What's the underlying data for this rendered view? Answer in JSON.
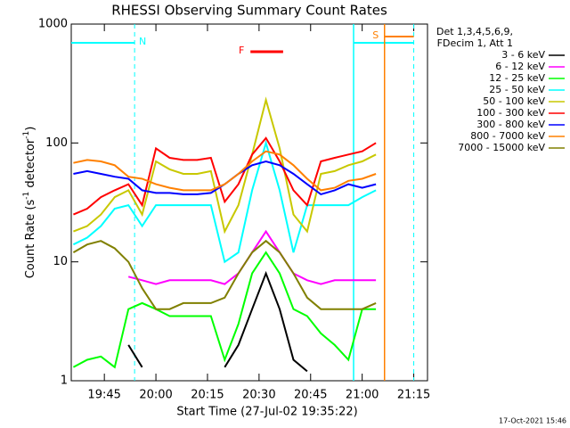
{
  "chart_data": {
    "type": "line",
    "title": "RHESSI Observing Summary Count Rates",
    "x_label": "Start Time (27-Jul-02 19:35:22)",
    "y_label": [
      "Count Rate (s",
      "-1",
      " detector",
      "-1",
      ")"
    ],
    "legend_header": [
      "Det 1,3,4,5,6,9,",
      "FDecim 1, Att 1"
    ],
    "footer": "17-Oct-2021 15:46",
    "log_y": true,
    "xlim": [
      35.37,
      139
    ],
    "ylim": [
      1,
      1000
    ],
    "yticks": [
      1,
      10,
      100,
      1000
    ],
    "xticks": [
      {
        "value": 45,
        "label": "19:45"
      },
      {
        "value": 60,
        "label": "20:00"
      },
      {
        "value": 75,
        "label": "20:15"
      },
      {
        "value": 90,
        "label": "20:30"
      },
      {
        "value": 105,
        "label": "20:45"
      },
      {
        "value": 120,
        "label": "21:00"
      },
      {
        "value": 135,
        "label": "21:15"
      }
    ],
    "x": [
      36,
      40,
      44,
      48,
      52,
      56,
      60,
      64,
      68,
      72,
      76,
      80,
      84,
      88,
      92,
      96,
      100,
      104,
      108,
      112,
      116,
      120,
      124
    ],
    "series": [
      {
        "name": "3 - 6 keV",
        "color": "#000000",
        "values": [
          null,
          null,
          null,
          null,
          2,
          1.3,
          null,
          null,
          null,
          null,
          null,
          1.3,
          2,
          4,
          8,
          4,
          1.5,
          1.2,
          null,
          null,
          null,
          null,
          null
        ]
      },
      {
        "name": "6 - 12 keV",
        "color": "#ff00ff",
        "values": [
          null,
          null,
          null,
          null,
          7.5,
          7,
          6.5,
          7,
          7,
          7,
          7,
          6.5,
          8,
          12,
          18,
          12,
          8,
          7,
          6.5,
          7,
          7,
          7,
          7
        ]
      },
      {
        "name": "12 - 25 keV",
        "color": "#00ff00",
        "values": [
          1.3,
          1.5,
          1.6,
          1.3,
          4,
          4.5,
          4,
          3.5,
          3.5,
          3.5,
          3.5,
          1.5,
          3,
          8,
          12,
          8,
          4,
          3.5,
          2.5,
          2,
          1.5,
          4,
          4
        ]
      },
      {
        "name": "25 - 50 keV",
        "color": "#00ffff",
        "values": [
          14,
          16,
          20,
          28,
          30,
          20,
          30,
          30,
          30,
          30,
          30,
          10,
          12,
          40,
          100,
          40,
          12,
          30,
          30,
          30,
          30,
          35,
          40
        ]
      },
      {
        "name": "50 - 100 keV",
        "color": "#c8c800",
        "values": [
          18,
          20,
          25,
          35,
          40,
          25,
          70,
          60,
          55,
          55,
          58,
          18,
          30,
          80,
          230,
          90,
          25,
          18,
          55,
          58,
          65,
          70,
          80
        ]
      },
      {
        "name": "100 - 300 keV",
        "color": "#ff0000",
        "values": [
          25,
          28,
          35,
          40,
          45,
          30,
          90,
          75,
          72,
          72,
          75,
          32,
          45,
          80,
          110,
          70,
          40,
          30,
          70,
          75,
          80,
          85,
          100
        ]
      },
      {
        "name": "300 - 800 keV",
        "color": "#0000ff",
        "values": [
          55,
          58,
          55,
          52,
          50,
          40,
          38,
          38,
          37,
          37,
          38,
          45,
          55,
          65,
          70,
          65,
          55,
          45,
          37,
          40,
          45,
          42,
          45
        ]
      },
      {
        "name": "800 - 7000 keV",
        "color": "#ff8000",
        "values": [
          68,
          72,
          70,
          65,
          52,
          50,
          45,
          42,
          40,
          40,
          40,
          45,
          55,
          70,
          85,
          80,
          65,
          50,
          40,
          42,
          48,
          50,
          55
        ]
      },
      {
        "name": "7000 - 15000 keV",
        "color": "#808000",
        "values": [
          12,
          14,
          15,
          13,
          10,
          6,
          4,
          4,
          4.5,
          4.5,
          4.5,
          5,
          8,
          12,
          15,
          12,
          8,
          5,
          4,
          4,
          4,
          4,
          4.5
        ]
      }
    ],
    "annotations": [
      {
        "label": "N",
        "start": 35.37,
        "end": 53.8,
        "color": "#00ffff"
      },
      {
        "start": 117.5,
        "end": 135,
        "color": "#00ffff"
      },
      {
        "label": "S",
        "start": 126.5,
        "end": 135,
        "color": "#ff8000"
      },
      {
        "label": "F",
        "start": 87.5,
        "end": 97,
        "color": "#ff0000"
      }
    ]
  }
}
